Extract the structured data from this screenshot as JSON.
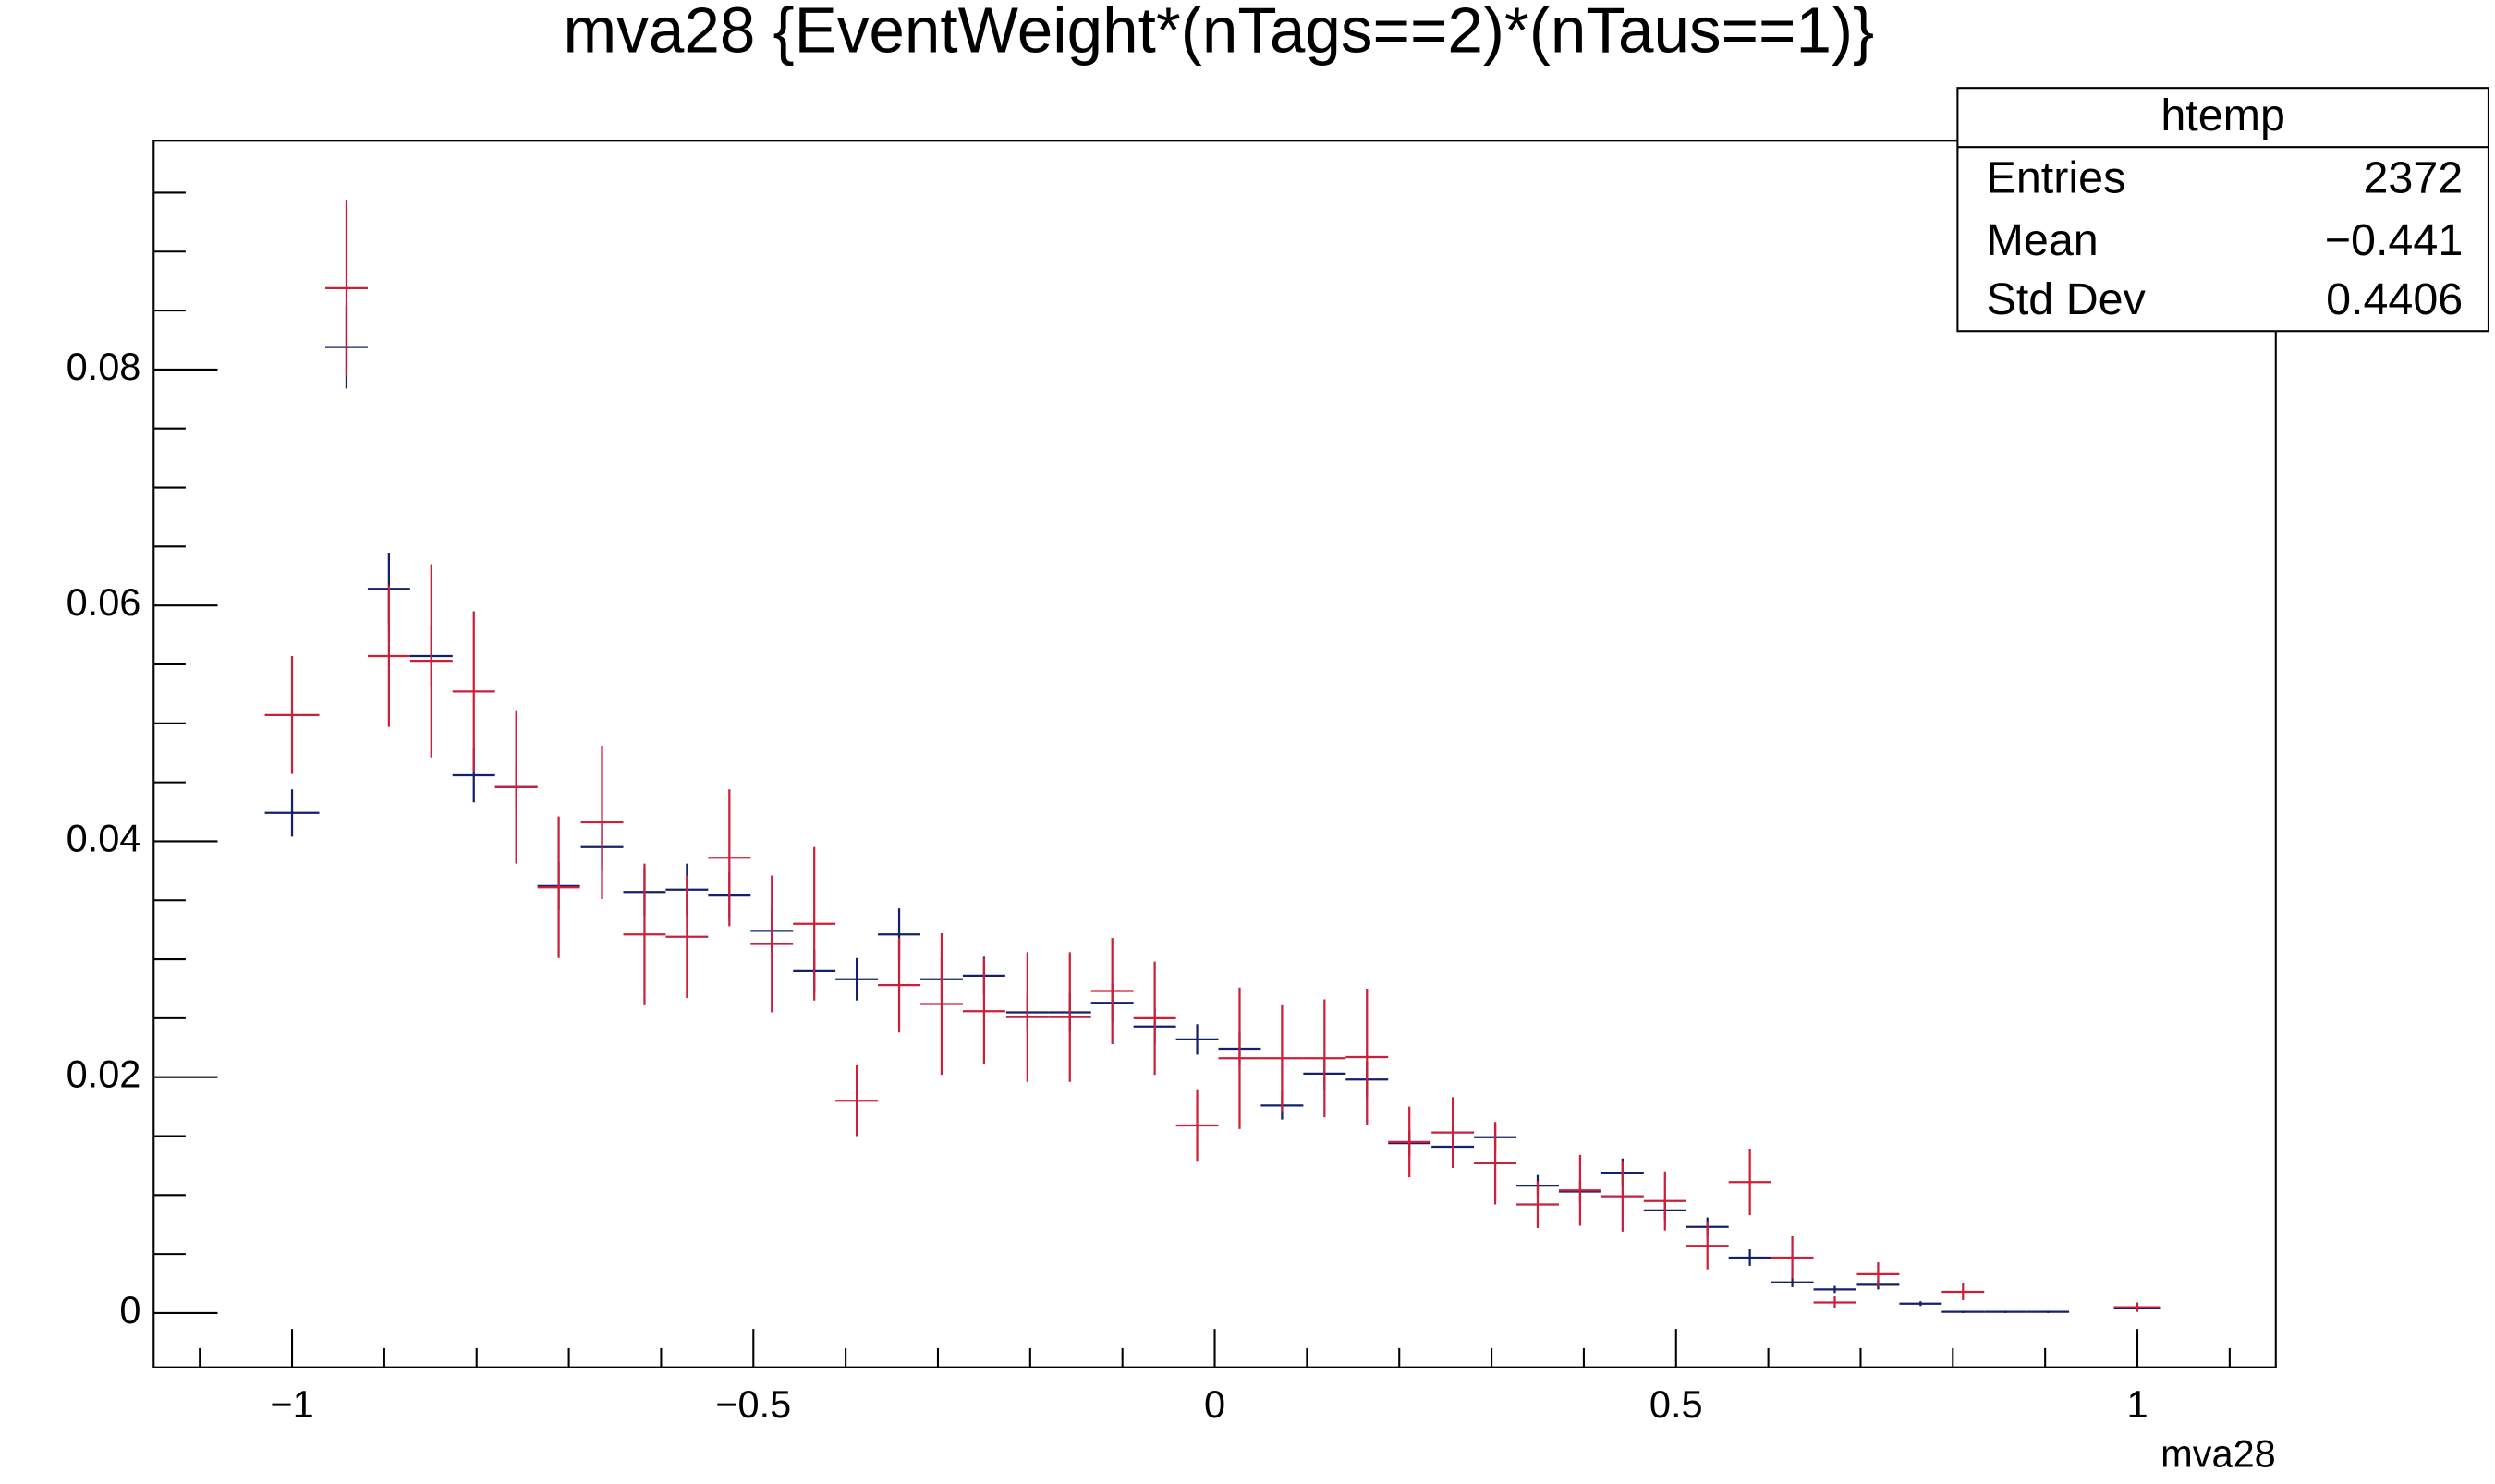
{
  "chart_data": {
    "type": "errorbar",
    "title": "mva28 {EventWeight*(nTags==2)*(nTaus==1)}",
    "x_label": "mva28",
    "x": [
      -1,
      -0.941,
      -0.895,
      -0.849,
      -0.803,
      -0.757,
      -0.711,
      -0.664,
      -0.618,
      -0.572,
      -0.526,
      -0.48,
      -0.434,
      -0.388,
      -0.342,
      -0.296,
      -0.25,
      -0.203,
      -0.157,
      -0.111,
      -0.065,
      -0.019,
      0.027,
      0.073,
      0.119,
      0.165,
      0.211,
      0.258,
      0.304,
      0.35,
      0.396,
      0.442,
      0.488,
      0.534,
      0.58,
      0.626,
      0.672,
      0.719,
      0.765,
      0.811,
      0.857,
      0.903,
      0.949,
      1
    ],
    "series": [
      {
        "color": "#13206b",
        "values": [
          0.0424,
          0.0819,
          0.0614,
          0.0557,
          0.0456,
          0.0446,
          0.0362,
          0.0395,
          0.0357,
          0.0359,
          0.0354,
          0.0324,
          0.029,
          0.0283,
          0.0321,
          0.0283,
          0.0286,
          0.0255,
          0.0255,
          0.0263,
          0.0243,
          0.0232,
          0.0224,
          0.0176,
          0.0203,
          0.0198,
          0.0144,
          0.0141,
          0.0149,
          0.0108,
          0.0103,
          0.0119,
          0.0087,
          0.0073,
          0.0047,
          0.0026,
          0.002,
          0.0024,
          0.0008,
          0.0001,
          0.0001,
          0.0001,
          null,
          0.0004
        ],
        "errors": [
          0.002,
          0.0035,
          0.003,
          0.0025,
          0.0023,
          0.002,
          0.002,
          0.002,
          0.002,
          0.0022,
          0.002,
          0.0018,
          0.0018,
          0.0018,
          0.0022,
          0.0018,
          0.0016,
          0.0016,
          0.0016,
          0.0016,
          0.0015,
          0.0013,
          0.0014,
          0.0012,
          0.0014,
          0.0015,
          0.0011,
          0.001,
          0.0012,
          0.0009,
          0.0009,
          0.0012,
          0.0008,
          0.0008,
          0.0007,
          0.0004,
          0.0003,
          0.0004,
          0.0002,
          0.0001,
          0.0001,
          0.0001,
          null,
          0.0002
        ]
      },
      {
        "color": "#cc1f3a",
        "values": [
          0.0507,
          0.0869,
          0.0557,
          0.0553,
          0.0527,
          0.0446,
          0.0361,
          0.0416,
          0.0321,
          0.0319,
          0.0386,
          0.0313,
          0.033,
          0.018,
          0.0278,
          0.0262,
          0.0256,
          0.0251,
          0.0251,
          0.0273,
          0.025,
          0.0159,
          0.0216,
          0.0216,
          0.0216,
          0.0217,
          0.0145,
          0.0153,
          0.0127,
          0.0092,
          0.0104,
          0.0099,
          0.0095,
          0.0057,
          0.0111,
          0.0047,
          0.0009,
          0.0033,
          null,
          0.0018,
          null,
          null,
          null,
          0.0005
        ],
        "errors": [
          0.005,
          0.0075,
          0.006,
          0.0082,
          0.0068,
          0.0065,
          0.006,
          0.0065,
          0.006,
          0.0052,
          0.0058,
          0.0058,
          0.0065,
          0.003,
          0.004,
          0.006,
          0.0045,
          0.0055,
          0.0055,
          0.0045,
          0.0048,
          0.003,
          0.006,
          0.0045,
          0.005,
          0.0058,
          0.003,
          0.003,
          0.0035,
          0.002,
          0.003,
          0.003,
          0.0025,
          0.002,
          0.0028,
          0.0018,
          0.0005,
          0.001,
          null,
          0.0007,
          null,
          null,
          null,
          0.0004
        ]
      }
    ],
    "xlim": [
      -1.15,
      1.15
    ],
    "ylim": [
      -0.0046,
      0.0994
    ],
    "xticks": [
      {
        "value": -1,
        "label": "−1"
      },
      {
        "value": -0.5,
        "label": "−0.5"
      },
      0,
      0.5,
      1
    ],
    "yticks": [
      0,
      0.02,
      0.04,
      0.06,
      0.08
    ],
    "stats_box": {
      "title": "htemp",
      "rows": [
        [
          "Entries",
          "2372"
        ],
        [
          "Mean",
          "−0.441"
        ],
        [
          "Std Dev",
          "0.4406"
        ]
      ]
    }
  }
}
